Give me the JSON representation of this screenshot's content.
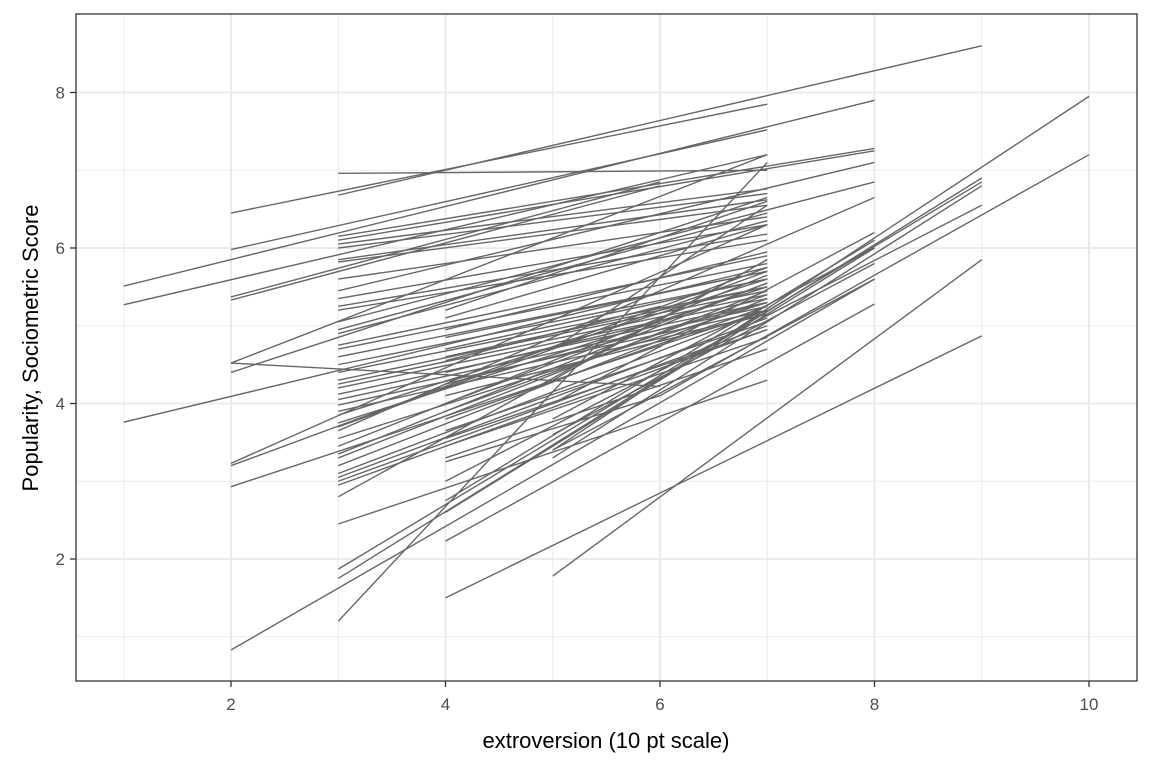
{
  "chart_data": {
    "type": "line",
    "title": "",
    "xlabel": "extroversion (10 pt scale)",
    "ylabel": "Popularity, Sociometric Score",
    "xlim": [
      0.45,
      10.45
    ],
    "ylim": [
      0.45,
      9.03
    ],
    "x_ticks": [
      2,
      4,
      6,
      8,
      10
    ],
    "y_ticks": [
      2,
      4,
      6,
      8
    ],
    "x_tick_labels": [
      "2",
      "4",
      "6",
      "8",
      "10"
    ],
    "y_tick_labels": [
      "2",
      "4",
      "6",
      "8"
    ],
    "grid": true,
    "legend": "none",
    "line_color": "#666666",
    "description": "One fitted linear regression line per class (grouped), each spanning that class's observed extroversion range",
    "series": [
      {
        "x": [
          2,
          7
        ],
        "y": [
          6.45,
          7.85
        ]
      },
      {
        "x": [
          1,
          8
        ],
        "y": [
          5.51,
          7.9
        ]
      },
      {
        "x": [
          1,
          7
        ],
        "y": [
          5.27,
          7.2
        ]
      },
      {
        "x": [
          3,
          7
        ],
        "y": [
          6.96,
          7.0
        ]
      },
      {
        "x": [
          3,
          9
        ],
        "y": [
          6.68,
          8.6
        ]
      },
      {
        "x": [
          2,
          7
        ],
        "y": [
          5.98,
          7.52
        ]
      },
      {
        "x": [
          3,
          8
        ],
        "y": [
          6.15,
          7.28
        ]
      },
      {
        "x": [
          3,
          8
        ],
        "y": [
          6.1,
          7.25
        ]
      },
      {
        "x": [
          2,
          6
        ],
        "y": [
          5.37,
          6.85
        ]
      },
      {
        "x": [
          2,
          6
        ],
        "y": [
          5.33,
          6.8
        ]
      },
      {
        "x": [
          3,
          7
        ],
        "y": [
          6.05,
          6.76
        ]
      },
      {
        "x": [
          3,
          7
        ],
        "y": [
          6.0,
          6.7
        ]
      },
      {
        "x": [
          3,
          7
        ],
        "y": [
          5.85,
          6.62
        ]
      },
      {
        "x": [
          3,
          7
        ],
        "y": [
          5.82,
          6.55
        ]
      },
      {
        "x": [
          3,
          7
        ],
        "y": [
          5.6,
          6.4
        ]
      },
      {
        "x": [
          3,
          8
        ],
        "y": [
          5.45,
          7.1
        ]
      },
      {
        "x": [
          3,
          7
        ],
        "y": [
          5.35,
          6.3
        ]
      },
      {
        "x": [
          3,
          7
        ],
        "y": [
          5.25,
          6.18
        ]
      },
      {
        "x": [
          3,
          7
        ],
        "y": [
          5.2,
          6.1
        ]
      },
      {
        "x": [
          3,
          8
        ],
        "y": [
          5.05,
          6.85
        ]
      },
      {
        "x": [
          2,
          7
        ],
        "y": [
          4.52,
          7.2
        ]
      },
      {
        "x": [
          2,
          6
        ],
        "y": [
          4.52,
          4.22
        ]
      },
      {
        "x": [
          2,
          7
        ],
        "y": [
          4.4,
          6.65
        ]
      },
      {
        "x": [
          1,
          7
        ],
        "y": [
          3.76,
          5.75
        ]
      },
      {
        "x": [
          3,
          7
        ],
        "y": [
          4.95,
          6.45
        ]
      },
      {
        "x": [
          3,
          7
        ],
        "y": [
          4.9,
          6.35
        ]
      },
      {
        "x": [
          3,
          7
        ],
        "y": [
          4.75,
          5.9
        ]
      },
      {
        "x": [
          3,
          7
        ],
        "y": [
          4.7,
          5.8
        ]
      },
      {
        "x": [
          3,
          7
        ],
        "y": [
          4.6,
          5.7
        ]
      },
      {
        "x": [
          3,
          7
        ],
        "y": [
          4.5,
          5.6
        ]
      },
      {
        "x": [
          3,
          7
        ],
        "y": [
          4.4,
          5.5
        ]
      },
      {
        "x": [
          3,
          7
        ],
        "y": [
          4.3,
          5.45
        ]
      },
      {
        "x": [
          3,
          7
        ],
        "y": [
          4.25,
          5.4
        ]
      },
      {
        "x": [
          3,
          7
        ],
        "y": [
          4.2,
          5.35
        ]
      },
      {
        "x": [
          3,
          7
        ],
        "y": [
          4.12,
          5.3
        ]
      },
      {
        "x": [
          3,
          7
        ],
        "y": [
          4.05,
          5.25
        ]
      },
      {
        "x": [
          3,
          7
        ],
        "y": [
          3.98,
          5.2
        ]
      },
      {
        "x": [
          3,
          7
        ],
        "y": [
          3.9,
          5.15
        ]
      },
      {
        "x": [
          3,
          7
        ],
        "y": [
          3.85,
          5.6
        ]
      },
      {
        "x": [
          3,
          7
        ],
        "y": [
          3.75,
          5.5
        ]
      },
      {
        "x": [
          3,
          7
        ],
        "y": [
          3.7,
          5.7
        ]
      },
      {
        "x": [
          3,
          8
        ],
        "y": [
          3.65,
          6.65
        ]
      },
      {
        "x": [
          3,
          7
        ],
        "y": [
          3.55,
          5.3
        ]
      },
      {
        "x": [
          3,
          7
        ],
        "y": [
          3.45,
          5.65
        ]
      },
      {
        "x": [
          3,
          7
        ],
        "y": [
          3.35,
          5.55
        ]
      },
      {
        "x": [
          3,
          7
        ],
        "y": [
          3.3,
          5.45
        ]
      },
      {
        "x": [
          3,
          7
        ],
        "y": [
          3.2,
          5.35
        ]
      },
      {
        "x": [
          3,
          7
        ],
        "y": [
          3.1,
          5.2
        ]
      },
      {
        "x": [
          3,
          7
        ],
        "y": [
          3.05,
          5.1
        ]
      },
      {
        "x": [
          3,
          7
        ],
        "y": [
          3.0,
          5.0
        ]
      },
      {
        "x": [
          3,
          7
        ],
        "y": [
          2.95,
          4.95
        ]
      },
      {
        "x": [
          2,
          7
        ],
        "y": [
          3.23,
          6.3
        ]
      },
      {
        "x": [
          2,
          7
        ],
        "y": [
          3.2,
          5.75
        ]
      },
      {
        "x": [
          2,
          7
        ],
        "y": [
          2.93,
          5.2
        ]
      },
      {
        "x": [
          3,
          7
        ],
        "y": [
          2.8,
          5.85
        ]
      },
      {
        "x": [
          4,
          7
        ],
        "y": [
          5.2,
          6.6
        ]
      },
      {
        "x": [
          4,
          7
        ],
        "y": [
          5.1,
          6.3
        ]
      },
      {
        "x": [
          4,
          7
        ],
        "y": [
          4.95,
          5.95
        ]
      },
      {
        "x": [
          4,
          7
        ],
        "y": [
          4.85,
          5.7
        ]
      },
      {
        "x": [
          4,
          7
        ],
        "y": [
          4.7,
          5.6
        ]
      },
      {
        "x": [
          4,
          7
        ],
        "y": [
          4.6,
          5.5
        ]
      },
      {
        "x": [
          4,
          6
        ],
        "y": [
          4.55,
          5.25
        ]
      },
      {
        "x": [
          4,
          6
        ],
        "y": [
          4.4,
          5.05
        ]
      },
      {
        "x": [
          4,
          7
        ],
        "y": [
          4.25,
          5.3
        ]
      },
      {
        "x": [
          4,
          7
        ],
        "y": [
          4.1,
          5.15
        ]
      },
      {
        "x": [
          4,
          7
        ],
        "y": [
          4.0,
          5.55
        ]
      },
      {
        "x": [
          4,
          7
        ],
        "y": [
          3.9,
          5.4
        ]
      },
      {
        "x": [
          4,
          7
        ],
        "y": [
          3.8,
          5.25
        ]
      },
      {
        "x": [
          4,
          7
        ],
        "y": [
          3.65,
          5.05
        ]
      },
      {
        "x": [
          4,
          7
        ],
        "y": [
          3.55,
          4.95
        ]
      },
      {
        "x": [
          4,
          7
        ],
        "y": [
          3.45,
          4.85
        ]
      },
      {
        "x": [
          4,
          7
        ],
        "y": [
          3.3,
          4.7
        ]
      },
      {
        "x": [
          4,
          6
        ],
        "y": [
          3.25,
          4.1
        ]
      },
      {
        "x": [
          5,
          7
        ],
        "y": [
          4.7,
          6.55
        ]
      },
      {
        "x": [
          5,
          7
        ],
        "y": [
          4.3,
          5.85
        ]
      },
      {
        "x": [
          5,
          8
        ],
        "y": [
          4.0,
          6.2
        ]
      },
      {
        "x": [
          5,
          8
        ],
        "y": [
          3.8,
          6.0
        ]
      },
      {
        "x": [
          5,
          8
        ],
        "y": [
          3.6,
          5.8
        ]
      },
      {
        "x": [
          5,
          8
        ],
        "y": [
          3.4,
          5.6
        ]
      },
      {
        "x": [
          3,
          7
        ],
        "y": [
          2.45,
          4.3
        ]
      },
      {
        "x": [
          3,
          9
        ],
        "y": [
          1.87,
          6.85
        ]
      },
      {
        "x": [
          3,
          9
        ],
        "y": [
          1.75,
          6.9
        ]
      },
      {
        "x": [
          3,
          7
        ],
        "y": [
          1.2,
          7.1
        ]
      },
      {
        "x": [
          2,
          8
        ],
        "y": [
          0.83,
          5.6
        ]
      },
      {
        "x": [
          4,
          8
        ],
        "y": [
          2.23,
          5.28
        ]
      },
      {
        "x": [
          4,
          8
        ],
        "y": [
          2.6,
          6.0
        ]
      },
      {
        "x": [
          4,
          8
        ],
        "y": [
          2.75,
          6.1
        ]
      },
      {
        "x": [
          4,
          9
        ],
        "y": [
          3.0,
          6.55
        ]
      },
      {
        "x": [
          5,
          9
        ],
        "y": [
          3.3,
          6.8
        ]
      },
      {
        "x": [
          5,
          10
        ],
        "y": [
          3.4,
          7.95
        ]
      },
      {
        "x": [
          6,
          10
        ],
        "y": [
          4.1,
          7.2
        ]
      },
      {
        "x": [
          4,
          9
        ],
        "y": [
          1.5,
          4.87
        ]
      },
      {
        "x": [
          5,
          9
        ],
        "y": [
          1.78,
          5.85
        ]
      }
    ]
  },
  "axes": {
    "x_title": "extroversion (10 pt scale)",
    "y_title": "Popularity, Sociometric Score"
  }
}
